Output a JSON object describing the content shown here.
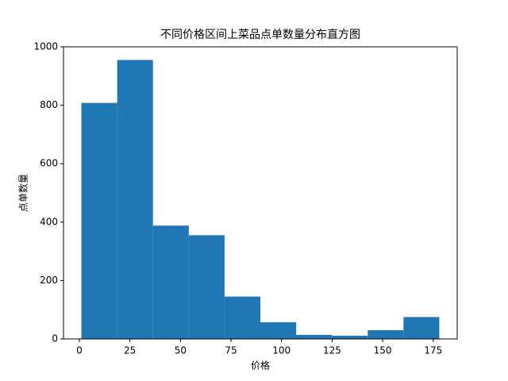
{
  "chart_data": {
    "type": "histogram",
    "title": "不同价格区间上菜品点单数量分布直方图",
    "x_label": "价格",
    "y_label": "点单数量",
    "bins": [
      1,
      18.7,
      36.4,
      54.1,
      71.8,
      89.5,
      107.2,
      124.9,
      142.6,
      160.3,
      178
    ],
    "values": [
      808,
      955,
      388,
      355,
      145,
      57,
      14,
      11,
      30,
      75
    ],
    "color": "#1f77b4",
    "xlim": [
      -7.85,
      186.85
    ],
    "xticks": [
      0,
      25,
      50,
      75,
      100,
      125,
      150,
      175
    ],
    "ylim": [
      0,
      1000
    ],
    "yticks": [
      0,
      200,
      400,
      600,
      800,
      1000
    ]
  }
}
